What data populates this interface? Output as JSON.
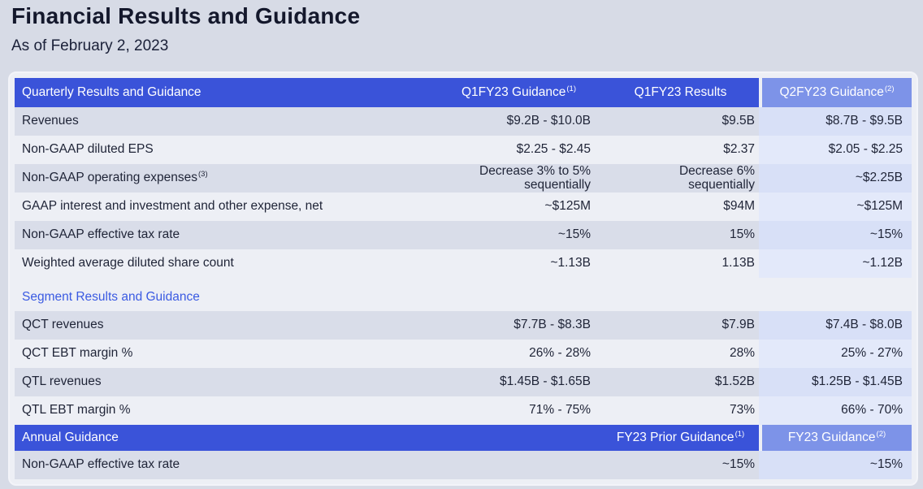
{
  "page": {
    "title": "Financial Results and Guidance",
    "subtitle": "As of February 2, 2023"
  },
  "colors": {
    "page_background": "#d7dbe6",
    "card_background": "#edeff5",
    "header_blue": "#3a53d9",
    "highlight_column_header_blue": "#7d93e8",
    "row_gray": "#d9dde9",
    "row_light": "#edeff5",
    "highlight_tint_on_gray": "#d8e0f7",
    "highlight_tint_on_light": "#e3e9fa",
    "section_text_blue": "#3a5ae2",
    "text_dark": "#1f2437"
  },
  "table": {
    "rows": [
      {
        "type": "header",
        "cells": [
          {
            "t": "Quarterly Results and Guidance"
          },
          {
            "t": "Q1FY23 Guidance",
            "sup": "(1)"
          },
          {
            "t": "Q1FY23 Results"
          },
          {
            "t": "Q2FY23 Guidance",
            "sup": "(2)"
          }
        ]
      },
      {
        "type": "data",
        "shade": "gray",
        "cells": [
          {
            "t": "Revenues"
          },
          {
            "t": "$9.2B - $10.0B"
          },
          {
            "t": "$9.5B"
          },
          {
            "t": "$8.7B - $9.5B"
          }
        ]
      },
      {
        "type": "data",
        "shade": "light",
        "cells": [
          {
            "t": "Non-GAAP diluted EPS"
          },
          {
            "t": "$2.25 - $2.45"
          },
          {
            "t": "$2.37"
          },
          {
            "t": "$2.05 - $2.25"
          }
        ]
      },
      {
        "type": "data",
        "shade": "gray",
        "cells": [
          {
            "t": "Non-GAAP operating expenses",
            "sup": "(3)"
          },
          {
            "t": "Decrease 3% to 5%\nsequentially"
          },
          {
            "t": "Decrease 6%\nsequentially"
          },
          {
            "t": "~$2.25B"
          }
        ]
      },
      {
        "type": "data",
        "shade": "light",
        "cells": [
          {
            "t": "GAAP interest and investment and other expense, net"
          },
          {
            "t": "~$125M"
          },
          {
            "t": "$94M"
          },
          {
            "t": "~$125M"
          }
        ]
      },
      {
        "type": "data",
        "shade": "gray",
        "cells": [
          {
            "t": "Non-GAAP effective tax rate"
          },
          {
            "t": "~15%"
          },
          {
            "t": "15%"
          },
          {
            "t": "~15%"
          }
        ]
      },
      {
        "type": "data",
        "shade": "light",
        "cells": [
          {
            "t": "Weighted average diluted share count"
          },
          {
            "t": "~1.13B"
          },
          {
            "t": "1.13B"
          },
          {
            "t": "~1.12B"
          }
        ]
      },
      {
        "type": "section",
        "cells": [
          {
            "t": "Segment Results and Guidance"
          }
        ]
      },
      {
        "type": "data",
        "shade": "gray",
        "cells": [
          {
            "t": "QCT revenues"
          },
          {
            "t": "$7.7B - $8.3B"
          },
          {
            "t": "$7.9B"
          },
          {
            "t": "$7.4B - $8.0B"
          }
        ]
      },
      {
        "type": "data",
        "shade": "light",
        "cells": [
          {
            "t": "QCT EBT margin %"
          },
          {
            "t": "26% - 28%"
          },
          {
            "t": "28%"
          },
          {
            "t": "25% - 27%"
          }
        ]
      },
      {
        "type": "data",
        "shade": "gray",
        "cells": [
          {
            "t": "QTL revenues"
          },
          {
            "t": "$1.45B - $1.65B"
          },
          {
            "t": "$1.52B"
          },
          {
            "t": "$1.25B - $1.45B"
          }
        ]
      },
      {
        "type": "data",
        "shade": "light",
        "cells": [
          {
            "t": "QTL EBT margin %"
          },
          {
            "t": "71% - 75%"
          },
          {
            "t": "73%"
          },
          {
            "t": "66% - 70%"
          }
        ]
      },
      {
        "type": "annual",
        "cells": [
          {
            "t": "Annual Guidance"
          },
          {
            "t": ""
          },
          {
            "t": "FY23 Prior Guidance",
            "sup": "(1)"
          },
          {
            "t": "FY23 Guidance",
            "sup": "(2)"
          }
        ]
      },
      {
        "type": "data",
        "shade": "gray",
        "cells": [
          {
            "t": "Non-GAAP effective tax rate"
          },
          {
            "t": ""
          },
          {
            "t": "~15%"
          },
          {
            "t": "~15%"
          }
        ]
      }
    ]
  }
}
